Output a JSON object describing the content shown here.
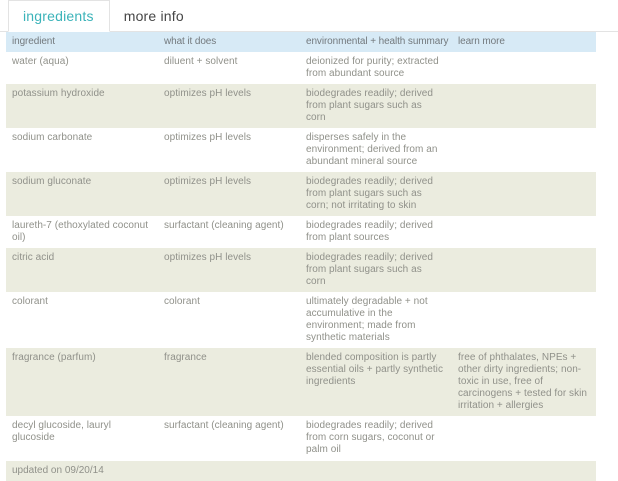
{
  "colors": {
    "accent": "#3bb3b9",
    "header_bg": "#d7eaf6",
    "row_alt_bg": "#ebecdf",
    "text": "#90918a",
    "header_text": "#73797d",
    "tab_inactive_text": "#464646",
    "border": "#e3e3e3"
  },
  "tabs": [
    {
      "label": "ingredients",
      "active": true
    },
    {
      "label": "more info",
      "active": false
    }
  ],
  "table": {
    "columns": [
      "ingredient",
      "what it does",
      "environmental + health summary",
      "learn more"
    ],
    "rows": [
      {
        "ingredient": "water (aqua)",
        "what": "diluent + solvent",
        "env": "deionized for purity; extracted from abundant source",
        "learn": ""
      },
      {
        "ingredient": "potassium hydroxide",
        "what": "optimizes pH levels",
        "env": "biodegrades readily; derived from plant sugars such as corn",
        "learn": ""
      },
      {
        "ingredient": "sodium carbonate",
        "what": "optimizes pH levels",
        "env": "disperses safely in the environment; derived from an abundant mineral source",
        "learn": ""
      },
      {
        "ingredient": "sodium gluconate",
        "what": "optimizes pH levels",
        "env": "biodegrades readily; derived from plant sugars such as corn; not irritating to skin",
        "learn": ""
      },
      {
        "ingredient": "laureth-7 (ethoxylated coconut oil)",
        "what": "surfactant (cleaning agent)",
        "env": "biodegrades readily; derived from plant sources",
        "learn": ""
      },
      {
        "ingredient": "citric acid",
        "what": "optimizes pH levels",
        "env": "biodegrades readily; derived from plant sugars such as corn",
        "learn": ""
      },
      {
        "ingredient": "colorant",
        "what": "colorant",
        "env": "ultimately degradable + not accumulative in the environment; made from synthetic materials",
        "learn": ""
      },
      {
        "ingredient": "fragrance (parfum)",
        "what": "fragrance",
        "env": "blended composition is partly essential oils + partly synthetic ingredients",
        "learn": "free of phthalates, NPEs + other dirty ingredients; non-toxic in use, free of carcinogens + tested for skin irritation + allergies"
      },
      {
        "ingredient": "decyl glucoside, lauryl glucoside",
        "what": "surfactant (cleaning agent)",
        "env": "biodegrades readily; derived from corn sugars, coconut or palm oil",
        "learn": ""
      }
    ]
  },
  "footer": {
    "updated_label": "updated on 09/20/14"
  }
}
